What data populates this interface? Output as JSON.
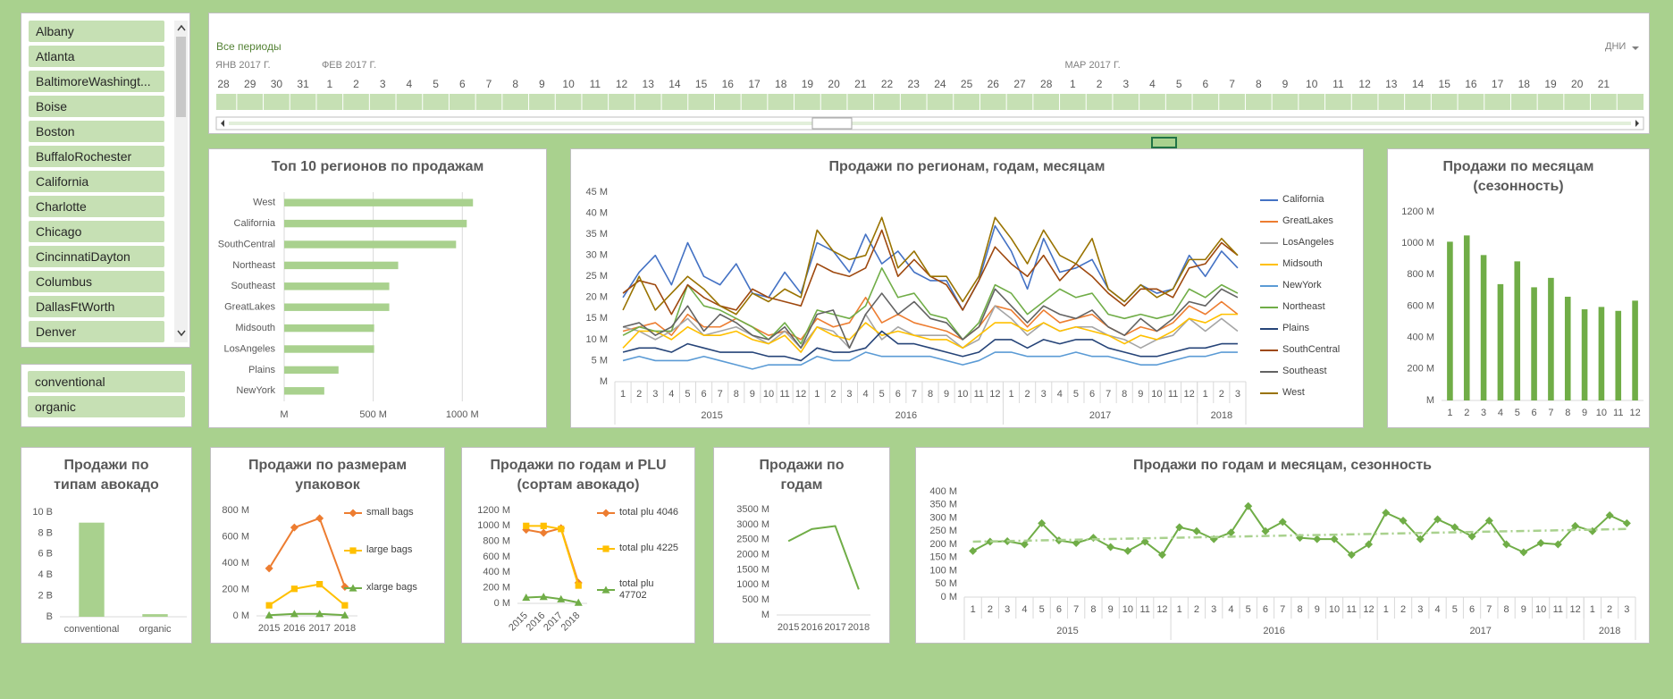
{
  "slicers": [
    {
      "items": [
        "Albany",
        "Atlanta",
        "BaltimoreWashingt...",
        "Boise",
        "Boston",
        "BuffaloRochester",
        "California",
        "Charlotte",
        "Chicago",
        "CincinnatiDayton",
        "Columbus",
        "DallasFtWorth",
        "Denver"
      ]
    },
    {
      "items": [
        "conventional",
        "organic"
      ]
    }
  ],
  "timeline": {
    "label": "Все периоды",
    "unit": "ДНИ",
    "months": [
      "ЯНВ 2017 Г.",
      "ФЕВ 2017 Г.",
      "МАР 2017 Г."
    ],
    "days": [
      28,
      29,
      30,
      31,
      1,
      2,
      3,
      4,
      5,
      6,
      7,
      8,
      9,
      10,
      11,
      12,
      13,
      14,
      15,
      16,
      17,
      18,
      19,
      20,
      21,
      22,
      23,
      24,
      25,
      26,
      27,
      28,
      1,
      2,
      3,
      4,
      5,
      6,
      7,
      8,
      9,
      10,
      11,
      12,
      13,
      14,
      15,
      16,
      17,
      18,
      19,
      20,
      21
    ]
  },
  "chart_data": [
    {
      "type": "bar",
      "orientation": "horizontal",
      "title": "Топ 10 регионов по продажам",
      "categories": [
        "West",
        "California",
        "SouthCentral",
        "Northeast",
        "Southeast",
        "GreatLakes",
        "Midsouth",
        "LosAngeles",
        "Plains",
        "NewYork"
      ],
      "values": [
        1060,
        1025,
        965,
        640,
        590,
        590,
        505,
        505,
        305,
        225
      ],
      "color": "#a9d18e",
      "xlim": [
        0,
        1400
      ],
      "xticks": [
        {
          "value": 0,
          "label": "M"
        },
        {
          "value": 500,
          "label": "500 M"
        },
        {
          "value": 1000,
          "label": "1000 M"
        }
      ],
      "grid": true
    },
    {
      "type": "line",
      "title": "Продажи по регионам, годам, месяцам",
      "groups": [
        {
          "label": "2015",
          "categories": [
            "1",
            "2",
            "3",
            "4",
            "5",
            "6",
            "7",
            "8",
            "9",
            "10",
            "11",
            "12"
          ]
        },
        {
          "label": "2016",
          "categories": [
            "1",
            "2",
            "3",
            "4",
            "5",
            "6",
            "7",
            "8",
            "9",
            "10",
            "11",
            "12"
          ]
        },
        {
          "label": "2017",
          "categories": [
            "1",
            "2",
            "3",
            "4",
            "5",
            "6",
            "7",
            "8",
            "9",
            "10",
            "11",
            "12"
          ]
        },
        {
          "label": "2018",
          "categories": [
            "1",
            "2",
            "3"
          ]
        }
      ],
      "series": [
        {
          "name": "California",
          "color": "#4472c4",
          "values": [
            20,
            26,
            30,
            23,
            33,
            25,
            23,
            28,
            21,
            20,
            26,
            21,
            33,
            31,
            26,
            35,
            28,
            31,
            26,
            24,
            24,
            17,
            24,
            37,
            31,
            22,
            34,
            26,
            27,
            29,
            22,
            19,
            23,
            21,
            22,
            30,
            25,
            31,
            27
          ]
        },
        {
          "name": "GreatLakes",
          "color": "#ed7d31",
          "values": [
            12,
            13,
            14,
            11,
            16,
            13,
            13,
            15,
            13,
            11,
            12,
            10,
            15,
            13,
            14,
            20,
            14,
            16,
            14,
            13,
            12,
            10,
            13,
            18,
            17,
            13,
            17,
            14,
            15,
            16,
            13,
            11,
            13,
            12,
            14,
            18,
            16,
            19,
            16
          ]
        },
        {
          "name": "LosAngeles",
          "color": "#a5a5a5",
          "values": [
            13,
            12,
            10,
            12,
            15,
            11,
            12,
            13,
            11,
            9,
            12,
            8,
            13,
            12,
            8,
            16,
            10,
            13,
            11,
            11,
            11,
            8,
            10,
            18,
            15,
            11,
            14,
            12,
            13,
            13,
            11,
            10,
            8,
            10,
            11,
            15,
            12,
            15,
            12
          ]
        },
        {
          "name": "Midsouth",
          "color": "#ffc000",
          "values": [
            8,
            12,
            12,
            10,
            13,
            11,
            11,
            12,
            10,
            9,
            11,
            7,
            13,
            11,
            10,
            14,
            11,
            12,
            11,
            10,
            10,
            8,
            11,
            14,
            14,
            12,
            14,
            12,
            13,
            12,
            11,
            9,
            11,
            10,
            12,
            15,
            14,
            16,
            16
          ]
        },
        {
          "name": "NewYork",
          "color": "#5b9bd5",
          "values": [
            5,
            6,
            5,
            5,
            5,
            6,
            5,
            4,
            3,
            4,
            4,
            4,
            6,
            5,
            5,
            7,
            6,
            6,
            6,
            6,
            5,
            4,
            5,
            7,
            7,
            6,
            6,
            6,
            7,
            6,
            6,
            5,
            4,
            4,
            5,
            6,
            6,
            7,
            7
          ]
        },
        {
          "name": "Northeast",
          "color": "#70ad47",
          "values": [
            11,
            13,
            12,
            12,
            23,
            18,
            17,
            15,
            13,
            10,
            14,
            9,
            17,
            16,
            15,
            18,
            27,
            20,
            21,
            16,
            15,
            10,
            14,
            23,
            21,
            16,
            19,
            22,
            20,
            21,
            16,
            15,
            16,
            15,
            16,
            22,
            20,
            23,
            21
          ]
        },
        {
          "name": "Plains",
          "color": "#264478",
          "values": [
            7,
            8,
            8,
            7,
            9,
            8,
            7,
            7,
            7,
            6,
            6,
            5,
            8,
            7,
            7,
            8,
            12,
            9,
            9,
            8,
            7,
            6,
            7,
            10,
            10,
            8,
            10,
            9,
            10,
            10,
            8,
            7,
            6,
            6,
            7,
            8,
            8,
            9,
            9
          ]
        },
        {
          "name": "SouthCentral",
          "color": "#9e480e",
          "values": [
            21,
            24,
            23,
            16,
            23,
            20,
            18,
            17,
            22,
            20,
            19,
            18,
            28,
            26,
            25,
            27,
            36,
            25,
            29,
            25,
            23,
            17,
            24,
            32,
            28,
            25,
            30,
            24,
            28,
            25,
            21,
            18,
            22,
            22,
            20,
            27,
            28,
            33,
            30
          ]
        },
        {
          "name": "Southeast",
          "color": "#636363",
          "values": [
            13,
            14,
            11,
            13,
            18,
            12,
            16,
            14,
            11,
            10,
            13,
            8,
            16,
            17,
            8,
            16,
            21,
            16,
            19,
            15,
            14,
            10,
            13,
            22,
            18,
            14,
            18,
            16,
            15,
            17,
            13,
            11,
            15,
            12,
            15,
            19,
            18,
            22,
            20
          ]
        },
        {
          "name": "West",
          "color": "#997300",
          "values": [
            17,
            25,
            17,
            21,
            25,
            22,
            18,
            16,
            21,
            19,
            22,
            20,
            36,
            31,
            29,
            30,
            39,
            27,
            31,
            25,
            25,
            19,
            25,
            39,
            34,
            28,
            36,
            30,
            28,
            34,
            22,
            19,
            23,
            20,
            22,
            29,
            29,
            34,
            30
          ]
        }
      ],
      "ylim": [
        0,
        45
      ],
      "yticks": [
        {
          "value": 0,
          "label": "M"
        },
        {
          "value": 5,
          "label": "5 M"
        },
        {
          "value": 10,
          "label": "10 M"
        },
        {
          "value": 15,
          "label": "15 M"
        },
        {
          "value": 20,
          "label": "20 M"
        },
        {
          "value": 25,
          "label": "25 M"
        },
        {
          "value": 30,
          "label": "30 M"
        },
        {
          "value": 35,
          "label": "35 M"
        },
        {
          "value": 40,
          "label": "40 M"
        },
        {
          "value": 45,
          "label": "45 M"
        }
      ]
    },
    {
      "type": "bar",
      "title": "Продажи по месяцам (сезонность)",
      "categories": [
        "1",
        "2",
        "3",
        "4",
        "5",
        "6",
        "7",
        "8",
        "9",
        "10",
        "11",
        "12"
      ],
      "values": [
        1010,
        1050,
        925,
        740,
        885,
        720,
        780,
        660,
        580,
        595,
        570,
        635
      ],
      "color": "#70ad47",
      "ylim": [
        0,
        1200
      ],
      "yticks": [
        {
          "value": 0,
          "label": "M"
        },
        {
          "value": 200,
          "label": "200 M"
        },
        {
          "value": 400,
          "label": "400 M"
        },
        {
          "value": 600,
          "label": "600 M"
        },
        {
          "value": 800,
          "label": "800 M"
        },
        {
          "value": 1000,
          "label": "1000 M"
        },
        {
          "value": 1200,
          "label": "1200 M"
        }
      ]
    },
    {
      "type": "bar",
      "title": "Продажи по типам авокадо",
      "categories": [
        "conventional",
        "organic"
      ],
      "values": [
        9.0,
        0.25
      ],
      "color": "#a9d18e",
      "ylim": [
        0,
        10
      ],
      "yticks": [
        {
          "value": 0,
          "label": "B"
        },
        {
          "value": 2,
          "label": "2 B"
        },
        {
          "value": 4,
          "label": "4 B"
        },
        {
          "value": 6,
          "label": "6 B"
        },
        {
          "value": 8,
          "label": "8 B"
        },
        {
          "value": 10,
          "label": "10 B"
        }
      ]
    },
    {
      "type": "line",
      "title": "Продажи по размерам упаковок",
      "categories": [
        "2015",
        "2016",
        "2017",
        "2018"
      ],
      "series": [
        {
          "name": "small bags",
          "color": "#ed7d31",
          "marker": "diamond",
          "values": [
            360,
            670,
            740,
            220
          ]
        },
        {
          "name": "large bags",
          "color": "#ffc000",
          "marker": "square",
          "values": [
            80,
            205,
            240,
            80
          ]
        },
        {
          "name": "xlarge bags",
          "color": "#70ad47",
          "marker": "triangle",
          "values": [
            5,
            15,
            15,
            5
          ]
        }
      ],
      "ylim": [
        0,
        800
      ],
      "yticks": [
        {
          "value": 0,
          "label": "0 M"
        },
        {
          "value": 200,
          "label": "200 M"
        },
        {
          "value": 400,
          "label": "400 M"
        },
        {
          "value": 600,
          "label": "600 M"
        },
        {
          "value": 800,
          "label": "800 M"
        }
      ]
    },
    {
      "type": "line",
      "title": "Продажи по годам и PLU (сортам авокадо)",
      "categories": [
        "2015",
        "2016",
        "2017",
        "2018"
      ],
      "series": [
        {
          "name": "total plu 4046",
          "color": "#ed7d31",
          "marker": "diamond",
          "values": [
            950,
            910,
            970,
            265
          ]
        },
        {
          "name": "total plu 4225",
          "color": "#ffc000",
          "marker": "square",
          "values": [
            1000,
            1000,
            960,
            230
          ]
        },
        {
          "name": "total plu 47702",
          "color": "#70ad47",
          "marker": "triangle",
          "values": [
            75,
            85,
            55,
            10
          ]
        }
      ],
      "ylim": [
        0,
        1200
      ],
      "yticks": [
        {
          "value": 0,
          "label": "0 M"
        },
        {
          "value": 200,
          "label": "200 M"
        },
        {
          "value": 400,
          "label": "400 M"
        },
        {
          "value": 600,
          "label": "600 M"
        },
        {
          "value": 800,
          "label": "800 M"
        },
        {
          "value": 1000,
          "label": "1000 M"
        },
        {
          "value": 1200,
          "label": "1200 M"
        }
      ]
    },
    {
      "type": "line",
      "title": "Продажи по годам",
      "categories": [
        "2015",
        "2016",
        "2017",
        "2018"
      ],
      "values": [
        2450,
        2850,
        2950,
        850
      ],
      "color": "#70ad47",
      "ylim": [
        0,
        3500
      ],
      "yticks": [
        {
          "value": 0,
          "label": "M"
        },
        {
          "value": 500,
          "label": "500 M"
        },
        {
          "value": 1000,
          "label": "1000 M"
        },
        {
          "value": 1500,
          "label": "1500 M"
        },
        {
          "value": 2000,
          "label": "2000 M"
        },
        {
          "value": 2500,
          "label": "2500 M"
        },
        {
          "value": 3000,
          "label": "3000 M"
        },
        {
          "value": 3500,
          "label": "3500 M"
        }
      ]
    },
    {
      "type": "line",
      "title": "Продажи по годам и месяцам, сезонность",
      "groups": [
        {
          "label": "2015",
          "categories": [
            "1",
            "2",
            "3",
            "4",
            "5",
            "6",
            "7",
            "8",
            "9",
            "10",
            "11",
            "12"
          ]
        },
        {
          "label": "2016",
          "categories": [
            "1",
            "2",
            "3",
            "4",
            "5",
            "6",
            "7",
            "8",
            "9",
            "10",
            "11",
            "12"
          ]
        },
        {
          "label": "2017",
          "categories": [
            "1",
            "2",
            "3",
            "4",
            "5",
            "6",
            "7",
            "8",
            "9",
            "10",
            "11",
            "12"
          ]
        },
        {
          "label": "2018",
          "categories": [
            "1",
            "2",
            "3"
          ]
        }
      ],
      "values": [
        175,
        210,
        212,
        200,
        280,
        215,
        205,
        225,
        190,
        175,
        210,
        160,
        265,
        250,
        220,
        245,
        345,
        250,
        285,
        225,
        220,
        220,
        160,
        200,
        320,
        290,
        220,
        295,
        265,
        230,
        290,
        200,
        170,
        205,
        200,
        270,
        250,
        310,
        280
      ],
      "color": "#70ad47",
      "marker": "diamond",
      "trendline": "linear",
      "ylim": [
        0,
        400
      ],
      "yticks": [
        {
          "value": 0,
          "label": "0 M"
        },
        {
          "value": 50,
          "label": "50 M"
        },
        {
          "value": 100,
          "label": "100 M"
        },
        {
          "value": 150,
          "label": "150 M"
        },
        {
          "value": 200,
          "label": "200 M"
        },
        {
          "value": 250,
          "label": "250 M"
        },
        {
          "value": 300,
          "label": "300 M"
        },
        {
          "value": 350,
          "label": "350 M"
        },
        {
          "value": 400,
          "label": "400 M"
        }
      ]
    }
  ]
}
